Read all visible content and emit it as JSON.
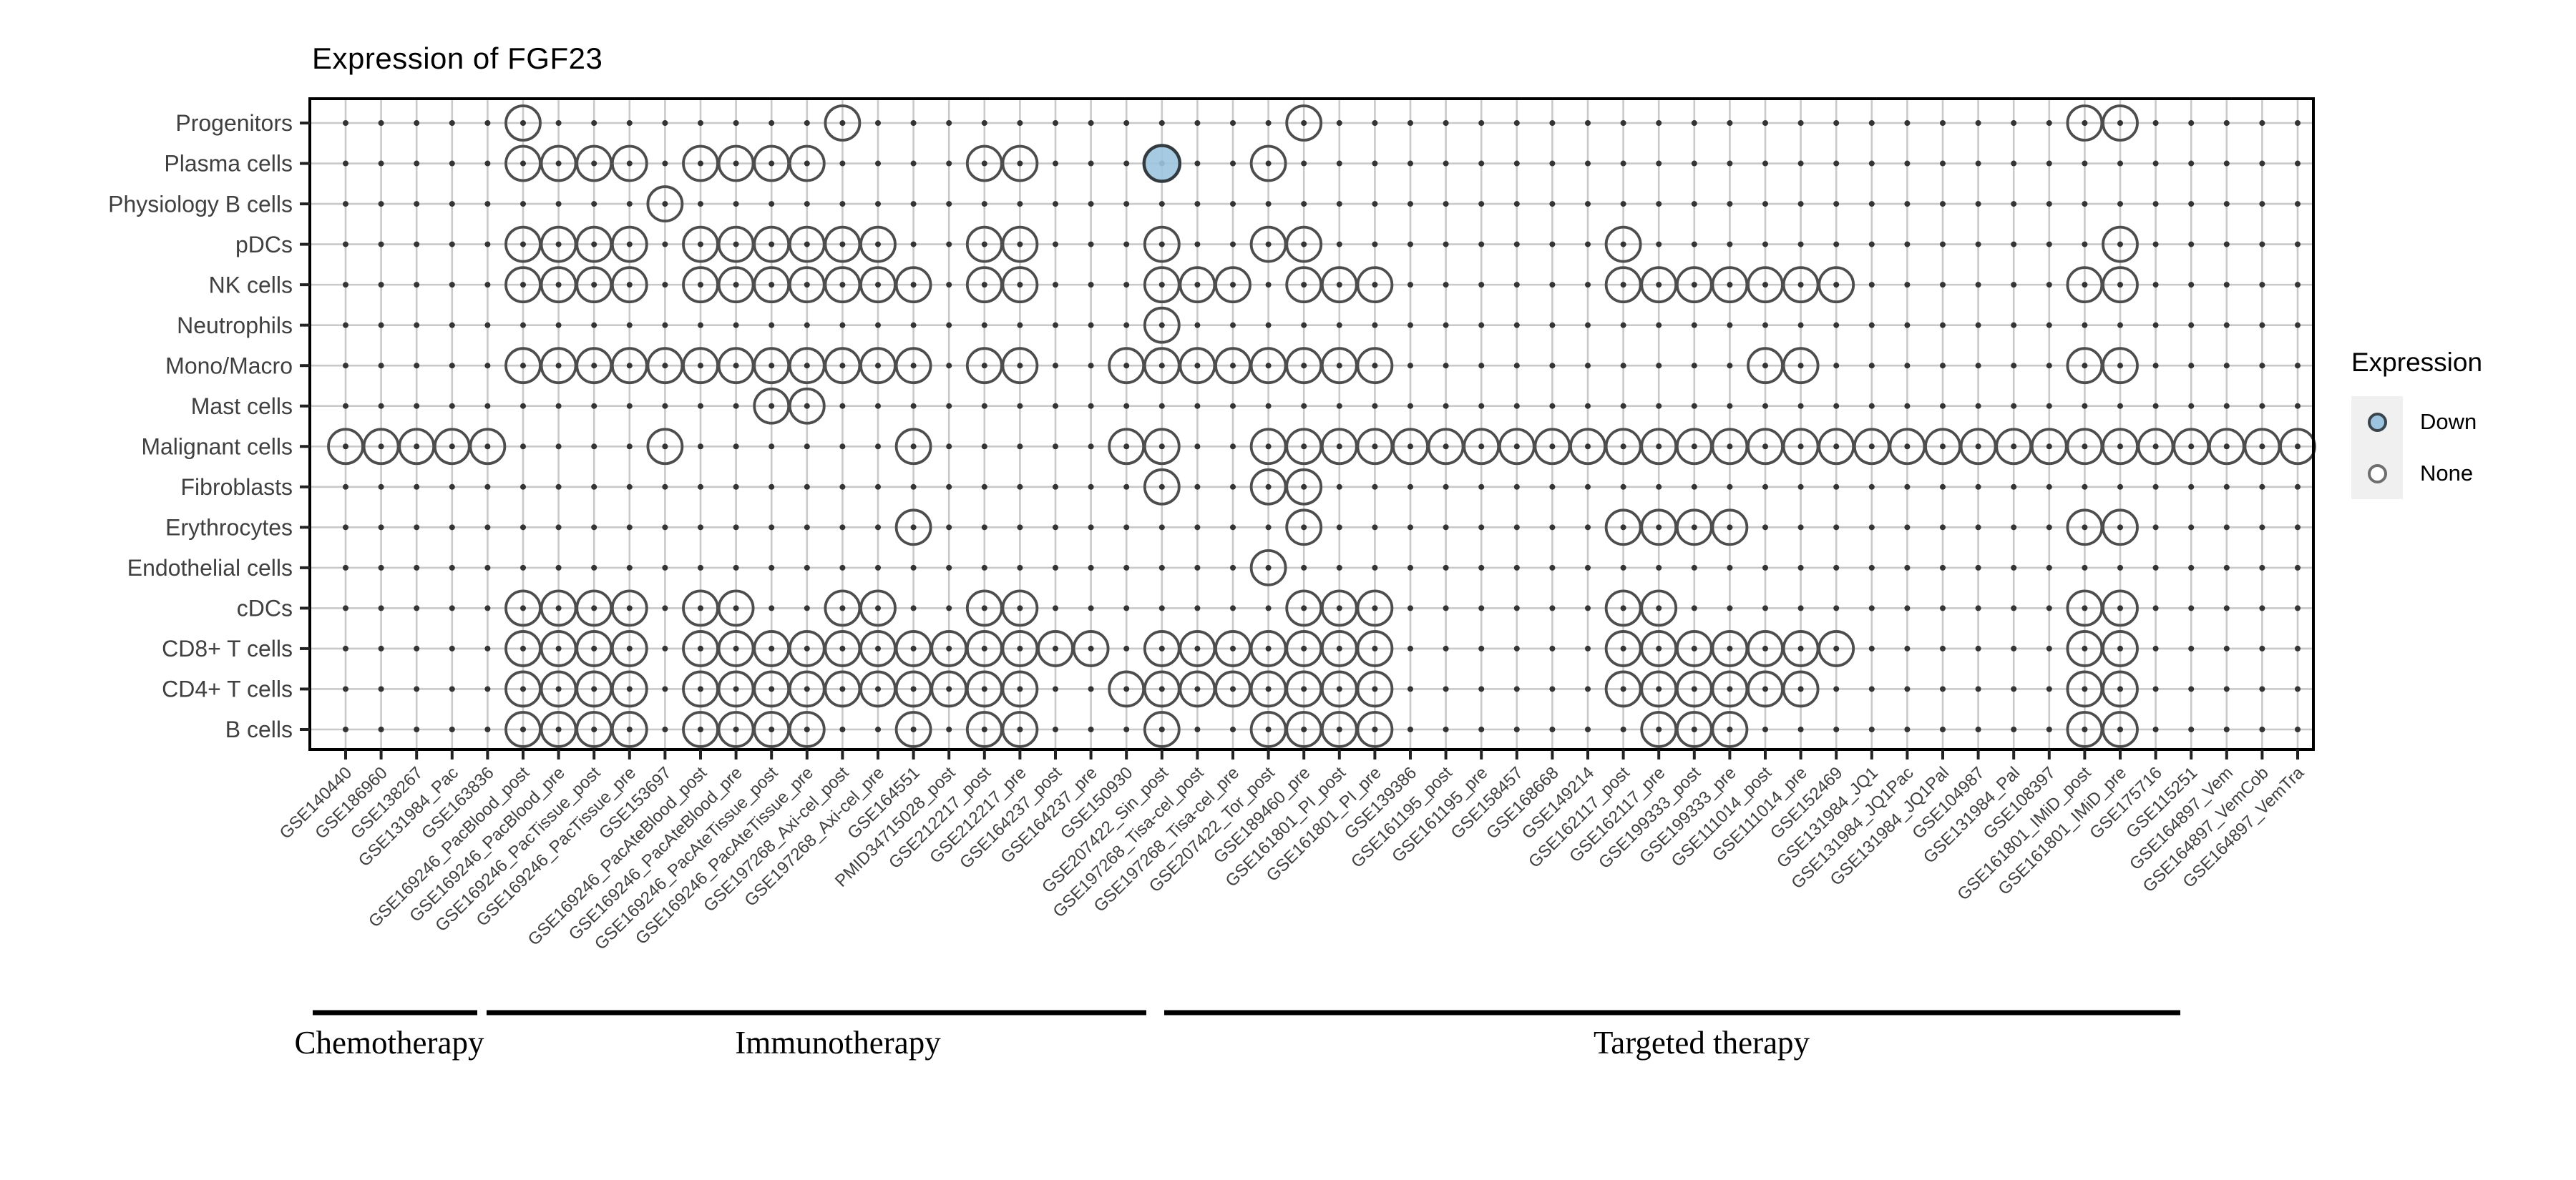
{
  "title": "Expression of FGF23",
  "legend": {
    "title": "Expression",
    "items": [
      {
        "label": "Down",
        "type": "down"
      },
      {
        "label": "None",
        "type": "none"
      }
    ]
  },
  "colors": {
    "down_fill": "#9cc4de",
    "circle_stroke": "#4d4d4d",
    "down_stroke": "#333b40",
    "grid": "#c9c9c9",
    "grid_dot": "#343434",
    "panel_border": "#000000",
    "axis_text": "#404040"
  },
  "chart_data": {
    "type": "dot_matrix",
    "title": "Expression of FGF23",
    "legend_position": "right",
    "grid": "on",
    "rows": [
      "Progenitors",
      "Plasma cells",
      "Physiology B cells",
      "pDCs",
      "NK cells",
      "Neutrophils",
      "Mono/Macro",
      "Mast cells",
      "Malignant cells",
      "Fibroblasts",
      "Erythrocytes",
      "Endothelial cells",
      "cDCs",
      "CD8+ T cells",
      "CD4+ T cells",
      "B cells"
    ],
    "columns": [
      "GSE140440",
      "GSE186960",
      "GSE138267",
      "GSE131984_Pac",
      "GSE163836",
      "GSE169246_PacBlood_post",
      "GSE169246_PacBlood_pre",
      "GSE169246_PacTissue_post",
      "GSE169246_PacTissue_pre",
      "GSE153697",
      "GSE169246_PacAteBlood_post",
      "GSE169246_PacAteBlood_pre",
      "GSE169246_PacAteTissue_post",
      "GSE169246_PacAteTissue_pre",
      "GSE197268_Axi-cel_post",
      "GSE197268_Axi-cel_pre",
      "GSE164551",
      "PMID34715028_post",
      "GSE212217_post",
      "GSE212217_pre",
      "GSE164237_post",
      "GSE164237_pre",
      "GSE150930",
      "GSE207422_Sin_post",
      "GSE197268_Tisa-cel_post",
      "GSE197268_Tisa-cel_pre",
      "GSE207422_Tor_post",
      "GSE189460_pre",
      "GSE161801_PI_post",
      "GSE161801_PI_pre",
      "GSE139386",
      "GSE161195_post",
      "GSE161195_pre",
      "GSE158457",
      "GSE168668",
      "GSE149214",
      "GSE162117_post",
      "GSE162117_pre",
      "GSE199333_post",
      "GSE199333_pre",
      "GSE111014_post",
      "GSE111014_pre",
      "GSE152469",
      "GSE131984_JQ1",
      "GSE131984_JQ1Pac",
      "GSE131984_JQ1Pal",
      "GSE104987",
      "GSE131984_Pal",
      "GSE108397",
      "GSE161801_IMiD_post",
      "GSE161801_IMiD_pre",
      "GSE175716",
      "GSE115251",
      "GSE164897_Vem",
      "GSE164897_VemCob",
      "GSE164897_VemTra"
    ],
    "groups": [
      {
        "label": "Chemotherapy",
        "col_start": 1,
        "col_end": 4
      },
      {
        "label": "Immunotherapy",
        "col_start": 5,
        "col_end": 23
      },
      {
        "label": "Targeted therapy",
        "col_start": 24,
        "col_end": 56
      }
    ],
    "expression_levels": [
      "Down",
      "None"
    ],
    "cells": {
      "Progenitors": [
        6,
        15,
        28,
        50,
        51
      ],
      "Plasma cells": [
        6,
        7,
        8,
        9,
        11,
        12,
        13,
        14,
        19,
        20,
        24,
        27
      ],
      "Physiology B cells": [
        10
      ],
      "pDCs": [
        6,
        7,
        8,
        9,
        11,
        12,
        13,
        14,
        15,
        16,
        19,
        20,
        24,
        27,
        28,
        37,
        51
      ],
      "NK cells": [
        6,
        7,
        8,
        9,
        11,
        12,
        13,
        14,
        15,
        16,
        17,
        19,
        20,
        24,
        25,
        26,
        28,
        29,
        30,
        37,
        38,
        39,
        40,
        41,
        42,
        43,
        50,
        51
      ],
      "Neutrophils": [
        24
      ],
      "Mono/Macro": [
        6,
        7,
        8,
        9,
        10,
        11,
        12,
        13,
        14,
        15,
        16,
        17,
        19,
        20,
        23,
        24,
        25,
        26,
        27,
        28,
        29,
        30,
        41,
        42,
        50,
        51
      ],
      "Mast cells": [
        13,
        14
      ],
      "Malignant cells": [
        1,
        2,
        3,
        4,
        5,
        10,
        17,
        23,
        24,
        27,
        28,
        29,
        30,
        31,
        32,
        33,
        34,
        35,
        36,
        37,
        38,
        39,
        40,
        41,
        42,
        43,
        44,
        45,
        46,
        47,
        48,
        49,
        50,
        51,
        52,
        53,
        54,
        55,
        56
      ],
      "Fibroblasts": [
        24,
        27,
        28
      ],
      "Erythrocytes": [
        17,
        28,
        37,
        38,
        39,
        40,
        50,
        51
      ],
      "Endothelial cells": [
        27
      ],
      "cDCs": [
        6,
        7,
        8,
        9,
        11,
        12,
        15,
        16,
        19,
        20,
        28,
        29,
        30,
        37,
        38,
        50,
        51
      ],
      "CD8+ T cells": [
        6,
        7,
        8,
        9,
        11,
        12,
        13,
        14,
        15,
        16,
        17,
        18,
        19,
        20,
        21,
        22,
        24,
        25,
        26,
        27,
        28,
        29,
        30,
        37,
        38,
        39,
        40,
        41,
        42,
        43,
        50,
        51
      ],
      "CD4+ T cells": [
        6,
        7,
        8,
        9,
        11,
        12,
        13,
        14,
        15,
        16,
        17,
        18,
        19,
        20,
        23,
        24,
        25,
        26,
        27,
        28,
        29,
        30,
        37,
        38,
        39,
        40,
        41,
        42,
        50,
        51
      ],
      "B cells": [
        6,
        7,
        8,
        9,
        11,
        12,
        13,
        14,
        17,
        19,
        20,
        24,
        27,
        28,
        29,
        30,
        38,
        39,
        40,
        50,
        51
      ]
    },
    "down_cells": [
      [
        "Plasma cells",
        24
      ]
    ]
  }
}
